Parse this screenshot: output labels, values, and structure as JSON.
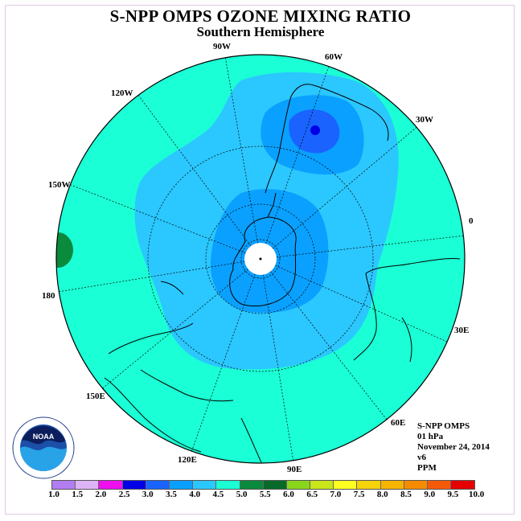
{
  "title": "S-NPP OMPS OZONE MIXING RATIO",
  "subtitle": "Southern Hemisphere",
  "map": {
    "lon_labels": [
      "90W",
      "60W",
      "30W",
      "0",
      "30E",
      "60E",
      "90E",
      "120E",
      "150E",
      "180",
      "150W",
      "120W"
    ]
  },
  "info": {
    "instrument": "S-NPP OMPS",
    "level": "01 hPa",
    "date": "November 24, 2014",
    "version": "v6",
    "units": "PPM"
  },
  "colorbar": {
    "ticks": [
      "1.0",
      "1.5",
      "2.0",
      "2.5",
      "3.0",
      "3.5",
      "4.0",
      "4.5",
      "5.0",
      "5.5",
      "6.0",
      "6.5",
      "7.0",
      "7.5",
      "8.0",
      "8.5",
      "9.0",
      "9.5",
      "10.0"
    ],
    "colors": [
      "#b27cf2",
      "#dcb4f5",
      "#ee10ee",
      "#0000e6",
      "#1a63ff",
      "#0aa0ff",
      "#2bc7ff",
      "#1affd5",
      "#0a8a3c",
      "#086a2a",
      "#8ad61c",
      "#c8e61a",
      "#ffff22",
      "#f5d20a",
      "#f5b400",
      "#f58c00",
      "#f55a0a",
      "#e60000",
      "#7a4a2a"
    ]
  }
}
